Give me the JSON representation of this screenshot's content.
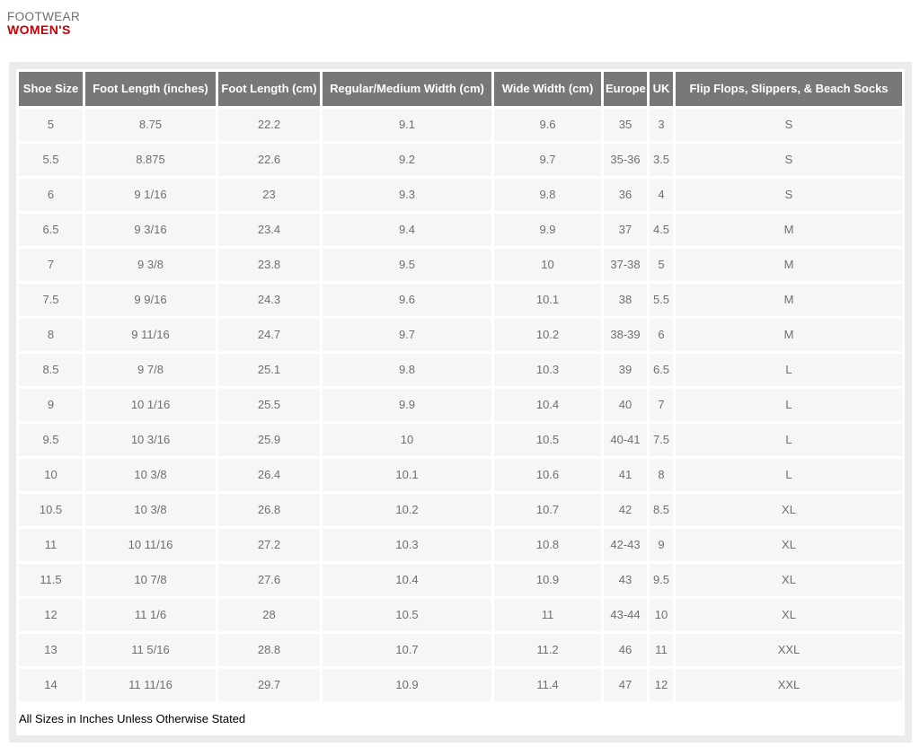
{
  "page": {
    "category_label": "FOOTWEAR",
    "title": "WOMEN'S",
    "footnote": "All Sizes in Inches Unless Otherwise Stated"
  },
  "colors": {
    "title_red": "#c40008",
    "category_gray": "#6e6e70",
    "header_bg": "#787878",
    "header_text": "#ffffff",
    "row_bg": "#f6f6f6",
    "row_text": "#6f6f6f",
    "panel_bg": "#ebebeb"
  },
  "table": {
    "columns": [
      "Shoe Size",
      "Foot Length (inches)",
      "Foot Length (cm)",
      "Regular/Medium Width (cm)",
      "Wide Width (cm)",
      "Europe",
      "UK",
      "Flip Flops, Slippers, & Beach Socks"
    ],
    "rows": [
      [
        "5",
        "8.75",
        "22.2",
        "9.1",
        "9.6",
        "35",
        "3",
        "S"
      ],
      [
        "5.5",
        "8.875",
        "22.6",
        "9.2",
        "9.7",
        "35-36",
        "3.5",
        "S"
      ],
      [
        "6",
        "9 1/16",
        "23",
        "9.3",
        "9.8",
        "36",
        "4",
        "S"
      ],
      [
        "6.5",
        "9 3/16",
        "23.4",
        "9.4",
        "9.9",
        "37",
        "4.5",
        "M"
      ],
      [
        "7",
        "9 3/8",
        "23.8",
        "9.5",
        "10",
        "37-38",
        "5",
        "M"
      ],
      [
        "7.5",
        "9 9/16",
        "24.3",
        "9.6",
        "10.1",
        "38",
        "5.5",
        "M"
      ],
      [
        "8",
        "9 11/16",
        "24.7",
        "9.7",
        "10.2",
        "38-39",
        "6",
        "M"
      ],
      [
        "8.5",
        "9 7/8",
        "25.1",
        "9.8",
        "10.3",
        "39",
        "6.5",
        "L"
      ],
      [
        "9",
        "10 1/16",
        "25.5",
        "9.9",
        "10.4",
        "40",
        "7",
        "L"
      ],
      [
        "9.5",
        "10 3/16",
        "25.9",
        "10",
        "10.5",
        "40-41",
        "7.5",
        "L"
      ],
      [
        "10",
        "10 3/8",
        "26.4",
        "10.1",
        "10.6",
        "41",
        "8",
        "L"
      ],
      [
        "10.5",
        "10 3/8",
        "26.8",
        "10.2",
        "10.7",
        "42",
        "8.5",
        "XL"
      ],
      [
        "11",
        "10 11/16",
        "27.2",
        "10.3",
        "10.8",
        "42-43",
        "9",
        "XL"
      ],
      [
        "11.5",
        "10 7/8",
        "27.6",
        "10.4",
        "10.9",
        "43",
        "9.5",
        "XL"
      ],
      [
        "12",
        "11 1/6",
        "28",
        "10.5",
        "11",
        "43-44",
        "10",
        "XL"
      ],
      [
        "13",
        "11 5/16",
        "28.8",
        "10.7",
        "11.2",
        "46",
        "11",
        "XXL"
      ],
      [
        "14",
        "11 11/16",
        "29.7",
        "10.9",
        "11.4",
        "47",
        "12",
        "XXL"
      ]
    ]
  }
}
